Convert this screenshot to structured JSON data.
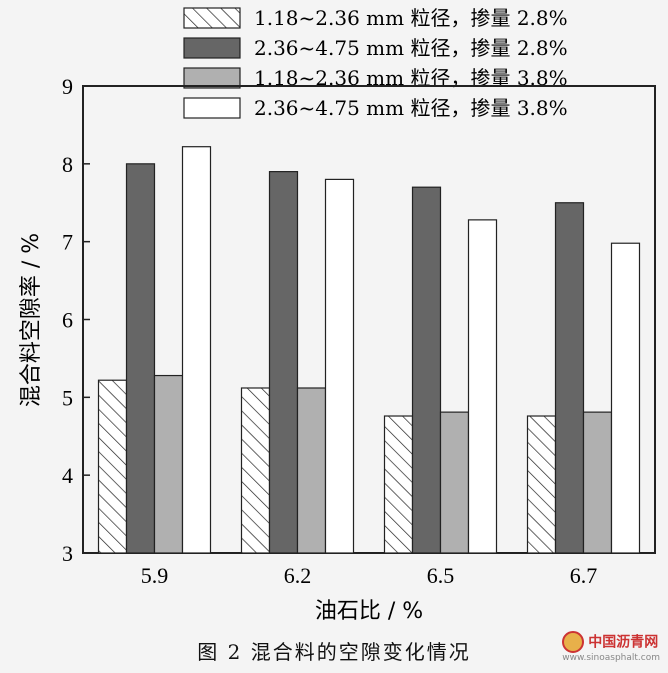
{
  "chart_data": {
    "type": "bar",
    "categories": [
      "5.9",
      "6.2",
      "6.5",
      "6.7"
    ],
    "series": [
      {
        "name": "1.18~2.36 mm 粒径，掺量 2.8%",
        "values": [
          5.22,
          5.12,
          4.76,
          4.76
        ],
        "fill": "hatch"
      },
      {
        "name": "2.36~4.75 mm 粒径，掺量 2.8%",
        "values": [
          8.0,
          7.9,
          7.7,
          7.5
        ],
        "fill": "#666666"
      },
      {
        "name": "1.18~2.36 mm 粒径，掺量 3.8%",
        "values": [
          5.28,
          5.12,
          4.81,
          4.81
        ],
        "fill": "#b0b0b0"
      },
      {
        "name": "2.36~4.75 mm 粒径，掺量 3.8%",
        "values": [
          8.22,
          7.8,
          7.28,
          6.98
        ],
        "fill": "#ffffff"
      }
    ],
    "xlabel": "油石比 / %",
    "ylabel": "混合料空隙率 / %",
    "ylim": [
      3,
      9
    ],
    "yticks": [
      "3",
      "4",
      "5",
      "6",
      "7",
      "8",
      "9"
    ],
    "grid": false,
    "legend_position": "top"
  },
  "caption": "图 2 混合料的空隙变化情况",
  "watermark": {
    "main": "中国沥青网",
    "sub": "www.sinoasphalt.com"
  }
}
